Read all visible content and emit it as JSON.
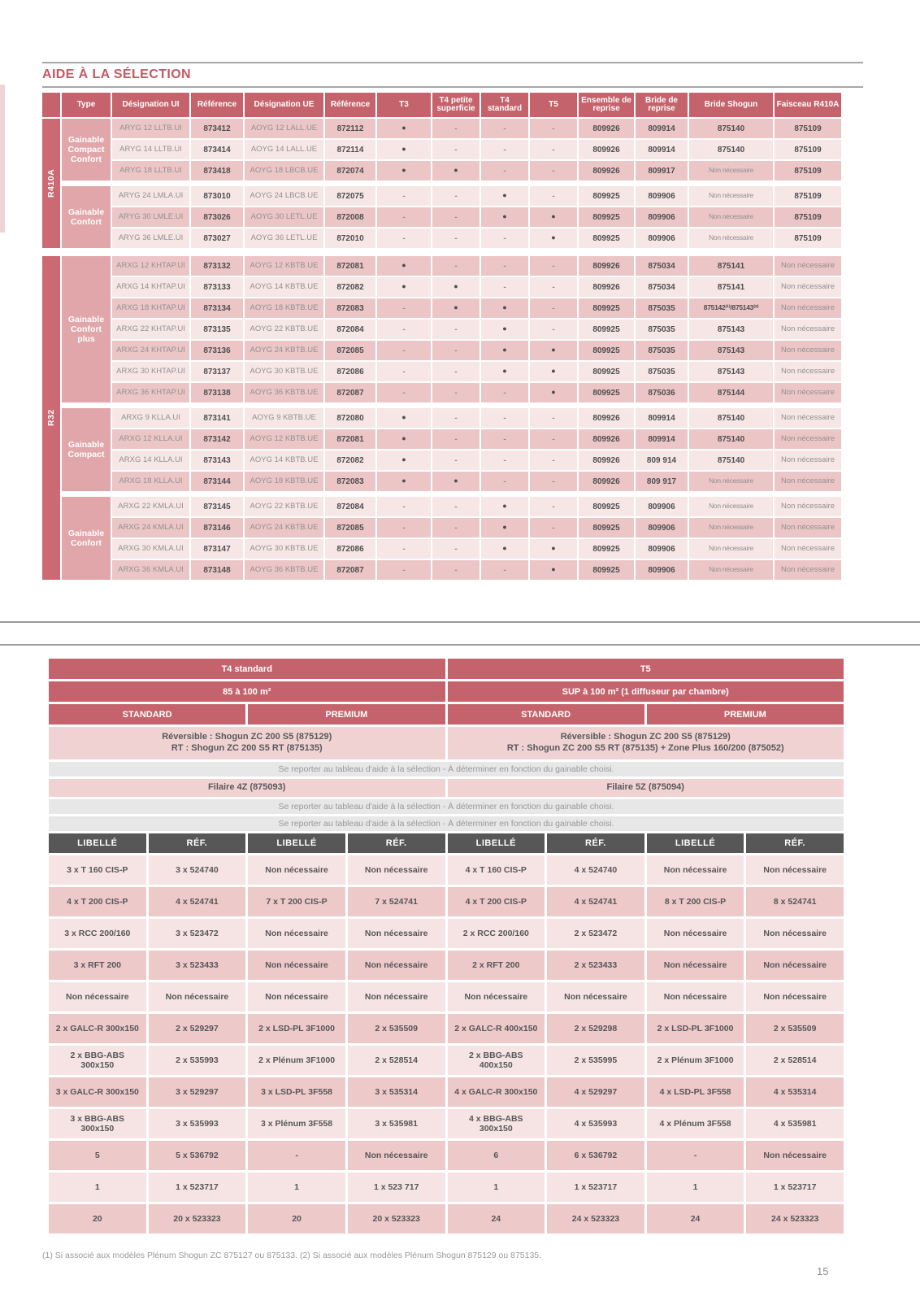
{
  "page": {
    "title": "AIDE À LA SÉLECTION",
    "footnote": "(1) Si associé aux modèles Plénum Shogun ZC 875127 ou 875133. (2) Si associé aux modèles Plénum Shogun 875129 ou 875135.",
    "page_number": "15"
  },
  "table1": {
    "headers": [
      "Type",
      "Désignation UI",
      "Référence",
      "Désignation UE",
      "Référence",
      "T3",
      "T4 petite superficie",
      "T4 standard",
      "T5",
      "Ensemble de reprise",
      "Bride de reprise",
      "Bride Shogun",
      "Faisceau R410A"
    ],
    "sections": [
      {
        "label": "R410A",
        "groups": [
          {
            "type": "Gainable Compact Confort",
            "rows": [
              [
                "ARYG 12 LLTB.UI",
                "873412",
                "AOYG 12 LALL.UE",
                "872112",
                "●",
                "-",
                "-",
                "-",
                "809926",
                "809914",
                "875140",
                "875109"
              ],
              [
                "ARYG 14 LLTB.UI",
                "873414",
                "AOYG 14 LALL.UE",
                "872114",
                "●",
                "-",
                "-",
                "-",
                "809926",
                "809914",
                "875140",
                "875109"
              ],
              [
                "ARYG 18 LLTB.UI",
                "873418",
                "AOYG 18 LBCB.UE",
                "872074",
                "●",
                "●",
                "-",
                "-",
                "809926",
                "809917",
                "Non nécessaire",
                "875109"
              ]
            ]
          },
          {
            "type": "Gainable Confort",
            "rows": [
              [
                "ARYG 24 LMLA.UI",
                "873010",
                "AOYG 24 LBCB.UE",
                "872075",
                "-",
                "-",
                "●",
                "-",
                "809925",
                "809906",
                "Non nécessaire",
                "875109"
              ],
              [
                "ARYG 30 LMLE.UI",
                "873026",
                "AOYG 30 LETL.UE",
                "872008",
                "-",
                "-",
                "●",
                "●",
                "809925",
                "809906",
                "Non nécessaire",
                "875109"
              ],
              [
                "ARYG 36 LMLE.UI",
                "873027",
                "AOYG 36 LETL.UE",
                "872010",
                "-",
                "-",
                "-",
                "●",
                "809925",
                "809906",
                "Non nécessaire",
                "875109"
              ]
            ]
          }
        ]
      },
      {
        "label": "R32",
        "groups": [
          {
            "type": "Gainable Confort plus",
            "rows": [
              [
                "ARXG 12 KHTAP.UI",
                "873132",
                "AOYG 12 KBTB.UE",
                "872081",
                "●",
                "-",
                "-",
                "-",
                "809926",
                "875034",
                "875141",
                "Non nécessaire"
              ],
              [
                "ARXG 14 KHTAP.UI",
                "873133",
                "AOYG 14 KBTB.UE",
                "872082",
                "●",
                "●",
                "-",
                "-",
                "809926",
                "875034",
                "875141",
                "Non nécessaire"
              ],
              [
                "ARXG 18 KHTAP.UI",
                "873134",
                "AOYG 18 KBTB.UE",
                "872083",
                "-",
                "●",
                "●",
                "-",
                "809925",
                "875035",
                "875142⁽¹⁾/875143⁽²⁾",
                "Non nécessaire"
              ],
              [
                "ARXG 22 KHTAP.UI",
                "873135",
                "AOYG 22 KBTB.UE",
                "872084",
                "-",
                "-",
                "●",
                "-",
                "809925",
                "875035",
                "875143",
                "Non nécessaire"
              ],
              [
                "ARXG 24 KHTAP.UI",
                "873136",
                "AOYG 24 KBTB.UE",
                "872085",
                "-",
                "-",
                "●",
                "●",
                "809925",
                "875035",
                "875143",
                "Non nécessaire"
              ],
              [
                "ARXG 30 KHTAP.UI",
                "873137",
                "AOYG 30 KBTB.UE",
                "872086",
                "-",
                "-",
                "●",
                "●",
                "809925",
                "875035",
                "875143",
                "Non nécessaire"
              ],
              [
                "ARXG 36 KHTAP.UI",
                "873138",
                "AOYG 36 KBTB.UE",
                "872087",
                "-",
                "-",
                "-",
                "●",
                "809925",
                "875036",
                "875144",
                "Non nécessaire"
              ]
            ]
          },
          {
            "type": "Gainable Compact",
            "rows": [
              [
                "ARXG 9 KLLA.UI",
                "873141",
                "AOYG 9 KBTB.UE",
                "872080",
                "●",
                "-",
                "-",
                "-",
                "809926",
                "809914",
                "875140",
                "Non nécessaire"
              ],
              [
                "ARXG 12 KLLA.UI",
                "873142",
                "AOYG 12 KBTB.UE",
                "872081",
                "●",
                "-",
                "-",
                "-",
                "809926",
                "809914",
                "875140",
                "Non nécessaire"
              ],
              [
                "ARXG 14 KLLA.UI",
                "873143",
                "AOYG 14 KBTB.UE",
                "872082",
                "●",
                "-",
                "-",
                "-",
                "809926",
                "809 914",
                "875140",
                "Non nécessaire"
              ],
              [
                "ARXG 18 KLLA.UI",
                "873144",
                "AOYG 18 KBTB.UE",
                "872083",
                "●",
                "●",
                "-",
                "-",
                "809926",
                "809 917",
                "Non nécessaire",
                "Non nécessaire"
              ]
            ]
          },
          {
            "type": "Gainable Confort",
            "rows": [
              [
                "ARXG 22 KMLA.UI",
                "873145",
                "AOYG 22 KBTB.UE",
                "872084",
                "-",
                "-",
                "●",
                "-",
                "809925",
                "809906",
                "Non nécessaire",
                "Non nécessaire"
              ],
              [
                "ARXG 24 KMLA.UI",
                "873146",
                "AOYG 24 KBTB.UE",
                "872085",
                "-",
                "-",
                "●",
                "-",
                "809925",
                "809906",
                "Non nécessaire",
                "Non nécessaire"
              ],
              [
                "ARXG 30 KMLA.UI",
                "873147",
                "AOYG 30 KBTB.UE",
                "872086",
                "-",
                "-",
                "●",
                "●",
                "809925",
                "809906",
                "Non nécessaire",
                "Non nécessaire"
              ],
              [
                "ARXG 36 KMLA.UI",
                "873148",
                "AOYG 36 KBTB.UE",
                "872087",
                "-",
                "-",
                "-",
                "●",
                "809925",
                "809906",
                "Non nécessaire",
                "Non nécessaire"
              ]
            ]
          }
        ]
      }
    ]
  },
  "table2": {
    "t4": {
      "title": "T4 standard",
      "surface": "85 à 100 m²",
      "standard_label": "STANDARD",
      "premium_label": "PREMIUM",
      "thermostat_line1": "Réversible : Shogun ZC 200 S5 (875129)",
      "thermostat_line2": "RT : Shogun ZC 200 S5 RT (875135)",
      "filaire": "Filaire 4Z (875093)"
    },
    "t5": {
      "title": "T5",
      "surface": "SUP à 100 m² (1 diffuseur par chambre)",
      "standard_label": "STANDARD",
      "premium_label": "PREMIUM",
      "thermostat_line1": "Réversible : Shogun ZC 200 S5 (875129)",
      "thermostat_line2": "RT : Shogun ZC 200 S5 RT (875135) + Zone Plus 160/200 (875052)",
      "filaire": "Filaire 5Z (875094)"
    },
    "note": "Se reporter au tableau d'aide à la sélection - À déterminer en fonction du gainable choisi.",
    "col_headers": [
      "LIBELLÉ",
      "RÉF."
    ],
    "rows": [
      [
        [
          "3 x T 160 CIS-P",
          "3 x 524740"
        ],
        [
          "Non nécessaire",
          "Non nécessaire"
        ],
        [
          "4 x T 160 CIS-P",
          "4 x 524740"
        ],
        [
          "Non nécessaire",
          "Non nécessaire"
        ]
      ],
      [
        [
          "4 x T 200 CIS-P",
          "4 x 524741"
        ],
        [
          "7 x T 200 CIS-P",
          "7 x 524741"
        ],
        [
          "4 x T 200 CIS-P",
          "4 x 524741"
        ],
        [
          "8 x T 200 CIS-P",
          "8 x 524741"
        ]
      ],
      [
        [
          "3 x RCC 200/160",
          "3 x 523472"
        ],
        [
          "Non nécessaire",
          "Non nécessaire"
        ],
        [
          "2 x RCC 200/160",
          "2 x 523472"
        ],
        [
          "Non nécessaire",
          "Non nécessaire"
        ]
      ],
      [
        [
          "3 x RFT 200",
          "3 x 523433"
        ],
        [
          "Non nécessaire",
          "Non nécessaire"
        ],
        [
          "2 x RFT 200",
          "2 x 523433"
        ],
        [
          "Non nécessaire",
          "Non nécessaire"
        ]
      ],
      [
        [
          "Non nécessaire",
          "Non nécessaire"
        ],
        [
          "Non nécessaire",
          "Non nécessaire"
        ],
        [
          "Non nécessaire",
          "Non nécessaire"
        ],
        [
          "Non nécessaire",
          "Non nécessaire"
        ]
      ],
      [
        [
          "2 x GALC-R 300x150",
          "2 x 529297"
        ],
        [
          "2 x LSD-PL 3F1000",
          "2 x 535509"
        ],
        [
          "2 x GALC-R 400x150",
          "2 x 529298"
        ],
        [
          "2 x LSD-PL 3F1000",
          "2 x 535509"
        ]
      ],
      [
        [
          "2 x BBG-ABS 300x150",
          "2 x 535993"
        ],
        [
          "2 x Plénum 3F1000",
          "2 x 528514"
        ],
        [
          "2 x BBG-ABS 400x150",
          "2 x 535995"
        ],
        [
          "2 x Plénum 3F1000",
          "2 x 528514"
        ]
      ],
      [
        [
          "3 x GALC-R 300x150",
          "3 x 529297"
        ],
        [
          "3 x LSD-PL 3F558",
          "3 x 535314"
        ],
        [
          "4 x GALC-R 300x150",
          "4 x 529297"
        ],
        [
          "4 x LSD-PL 3F558",
          "4 x 535314"
        ]
      ],
      [
        [
          "3 x BBG-ABS 300x150",
          "3 x 535993"
        ],
        [
          "3 x Plénum 3F558",
          "3 x 535981"
        ],
        [
          "4 x BBG-ABS 300x150",
          "4 x 535993"
        ],
        [
          "4 x Plénum 3F558",
          "4 x 535981"
        ]
      ],
      [
        [
          "5",
          "5 x 536792"
        ],
        [
          "-",
          "Non nécessaire"
        ],
        [
          "6",
          "6 x 536792"
        ],
        [
          "-",
          "Non nécessaire"
        ]
      ],
      [
        [
          "1",
          "1 x 523717"
        ],
        [
          "1",
          "1 x 523 717"
        ],
        [
          "1",
          "1 x 523717"
        ],
        [
          "1",
          "1 x 523717"
        ]
      ],
      [
        [
          "20",
          "20 x 523323"
        ],
        [
          "20",
          "20 x 523323"
        ],
        [
          "24",
          "24 x 523323"
        ],
        [
          "24",
          "24 x 523323"
        ]
      ]
    ]
  }
}
